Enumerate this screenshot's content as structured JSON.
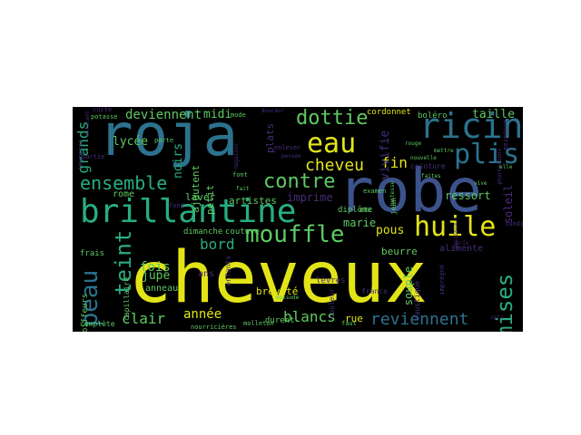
{
  "wordcloud": {
    "background": "#000000",
    "palette": {
      "yellow": "#e3e418",
      "green": "#5ec962",
      "teal": "#21918c",
      "blue": "#3b528b",
      "purple": "#472d7b",
      "cyan": "#2c728e",
      "lime": "#addc30",
      "aqua": "#28ae80"
    },
    "words": [
      {
        "text": "cheveux",
        "color": "#e3e418"
      },
      {
        "text": "robe",
        "color": "#3b528b"
      },
      {
        "text": "roja",
        "color": "#2c728e"
      },
      {
        "text": "brillantine",
        "color": "#28ae80"
      },
      {
        "text": "huile",
        "color": "#e3e418"
      },
      {
        "text": "mouffle",
        "color": "#5ec962"
      },
      {
        "text": "ricin",
        "color": "#2c728e"
      },
      {
        "text": "eau",
        "color": "#e3e418"
      },
      {
        "text": "plis",
        "color": "#2c728e"
      },
      {
        "text": "peau",
        "color": "#2c728e"
      },
      {
        "text": "teint",
        "color": "#28ae80"
      },
      {
        "text": "ensemble",
        "color": "#28ae80"
      },
      {
        "text": "contre",
        "color": "#5ec962"
      },
      {
        "text": "dottie",
        "color": "#5ec962"
      },
      {
        "text": "cheveu",
        "color": "#e3e418"
      },
      {
        "text": "mises",
        "color": "#28ae80"
      },
      {
        "text": "reviennent",
        "color": "#2c728e"
      },
      {
        "text": "deviennent",
        "color": "#5ec962"
      },
      {
        "text": "blancs",
        "color": "#5ec962"
      },
      {
        "text": "clair",
        "color": "#5ec962"
      },
      {
        "text": "bord",
        "color": "#28ae80"
      },
      {
        "text": "fois",
        "color": "#5ec962"
      },
      {
        "text": "année",
        "color": "#e3e418"
      },
      {
        "text": "fin",
        "color": "#e3e418"
      },
      {
        "text": "vivifie",
        "color": "#472d7b"
      },
      {
        "text": "grands",
        "color": "#28ae80"
      },
      {
        "text": "lycée",
        "color": "#5ec962"
      },
      {
        "text": "noirs",
        "color": "#28ae80"
      },
      {
        "text": "midi",
        "color": "#5ec962"
      },
      {
        "text": "taille",
        "color": "#5ec962"
      },
      {
        "text": "ressort",
        "color": "#5ec962"
      },
      {
        "text": "imprime",
        "color": "#472d7b"
      },
      {
        "text": "plats",
        "color": "#472d7b"
      },
      {
        "text": "pous",
        "color": "#e3e418"
      },
      {
        "text": "marie",
        "color": "#5ec962"
      },
      {
        "text": "jupe",
        "color": "#5ec962"
      },
      {
        "text": "rue",
        "color": "#e3e418"
      },
      {
        "text": "souple",
        "color": "#5ec962"
      },
      {
        "text": "soleil",
        "color": "#472d7b"
      },
      {
        "text": "laver",
        "color": "#5ec962"
      },
      {
        "text": "artistes",
        "color": "#5ec962"
      },
      {
        "text": "petit",
        "color": "#5ec962"
      },
      {
        "text": "ajoutent",
        "color": "#5ec962"
      },
      {
        "text": "rome",
        "color": "#5ec962"
      },
      {
        "text": "beurre",
        "color": "#5ec962"
      },
      {
        "text": "alimente",
        "color": "#472d7b"
      },
      {
        "text": "breveté",
        "color": "#e3e418"
      },
      {
        "text": "boléro",
        "color": "#5ec962"
      },
      {
        "text": "cordonnet",
        "color": "#e3e418"
      },
      {
        "text": "diplôme",
        "color": "#5ec962"
      },
      {
        "text": "anneau",
        "color": "#5ec962"
      },
      {
        "text": "ans",
        "color": "#472d7b"
      },
      {
        "text": "dimanche",
        "color": "#5ec962"
      },
      {
        "text": "couture",
        "color": "#5ec962"
      },
      {
        "text": "frais",
        "color": "#5ec962"
      },
      {
        "text": "coiffeurs",
        "color": "#5ec962"
      },
      {
        "text": "capillaire",
        "color": "#5ec962"
      },
      {
        "text": "durent",
        "color": "#5ec962"
      },
      {
        "text": "lèvres",
        "color": "#472d7b"
      },
      {
        "text": "caustique",
        "color": "#472d7b"
      },
      {
        "text": "enfants",
        "color": "#472d7b"
      },
      {
        "text": "couleur",
        "color": "#472d7b"
      },
      {
        "text": "jean",
        "color": "#5ec962"
      },
      {
        "text": "ceinture",
        "color": "#472d7b"
      },
      {
        "text": "france",
        "color": "#472d7b"
      },
      {
        "text": "faut",
        "color": "#5ec962"
      },
      {
        "text": "etc",
        "color": "#5ec962"
      },
      {
        "text": "lundi",
        "color": "#472d7b"
      },
      {
        "text": "complète",
        "color": "#5ec962"
      },
      {
        "text": "nourricières",
        "color": "#5ec962"
      },
      {
        "text": "jeunesse",
        "color": "#472d7b"
      },
      {
        "text": "potasse",
        "color": "#5ec962"
      },
      {
        "text": "cuite",
        "color": "#472d7b"
      },
      {
        "text": "porte",
        "color": "#5ec962"
      },
      {
        "text": "enlever",
        "color": "#472d7b"
      },
      {
        "text": "peinture",
        "color": "#472d7b"
      },
      {
        "text": "rouge",
        "color": "#5ec962"
      },
      {
        "text": "prix",
        "color": "#472d7b"
      },
      {
        "text": "examen",
        "color": "#5ec962"
      },
      {
        "text": "fond",
        "color": "#472d7b"
      },
      {
        "text": "font",
        "color": "#5ec962"
      },
      {
        "text": "partie",
        "color": "#472d7b"
      },
      {
        "text": "mode",
        "color": "#5ec962"
      },
      {
        "text": "fait",
        "color": "#5ec962"
      },
      {
        "text": "enfilant",
        "color": "#472d7b"
      },
      {
        "text": "magasins",
        "color": "#472d7b"
      },
      {
        "text": "pensée",
        "color": "#472d7b"
      },
      {
        "text": "mettre",
        "color": "#5ec962"
      },
      {
        "text": "nouvelle",
        "color": "#5ec962"
      },
      {
        "text": "faites",
        "color": "#5ec962"
      },
      {
        "text": "douceur",
        "color": "#472d7b"
      },
      {
        "text": "justesse",
        "color": "#5ec962"
      },
      {
        "text": "épisode",
        "color": "#5ec962"
      },
      {
        "text": "molleton",
        "color": "#5ec962"
      },
      {
        "text": "imprégné",
        "color": "#472d7b"
      },
      {
        "text": "possible",
        "color": "#472d7b"
      },
      {
        "text": "pharmaciens",
        "color": "#472d7b"
      },
      {
        "text": "elle",
        "color": "#5ec962"
      },
      {
        "text": "vive",
        "color": "#5ec962"
      },
      {
        "text": "cela",
        "color": "#472d7b"
      }
    ]
  }
}
